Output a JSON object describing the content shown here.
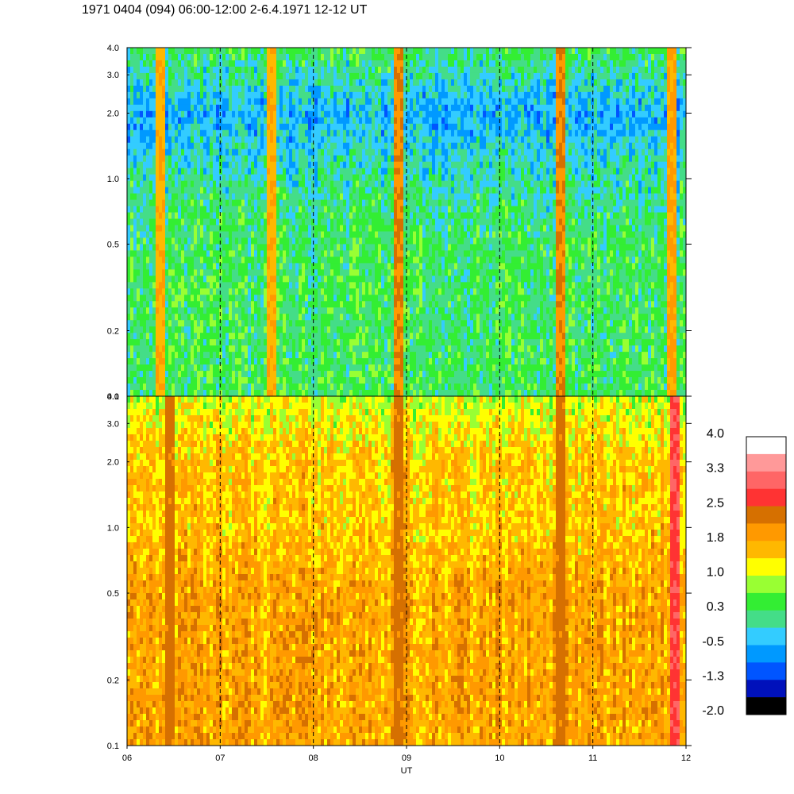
{
  "title": "1971 0404 (094) 06:00-12:00 2-6.4.1971 12-12 UT",
  "chart_data": {
    "type": "heatmap",
    "title": "1971 0404 (094) 06:00-12:00 2-6.4.1971 12-12 UT",
    "xlabel": "UT",
    "x_ticks": [
      "06",
      "07",
      "08",
      "09",
      "10",
      "11",
      "12"
    ],
    "x_range": [
      6,
      12
    ],
    "y_scale": "log",
    "y_range": [
      0.1,
      4.0
    ],
    "y_ticks": [
      "4.0",
      "3.0",
      "2.0",
      "1.0",
      "0.5",
      "0.2",
      "0.1"
    ],
    "y_tick_values": [
      4.0,
      3.0,
      2.0,
      1.0,
      0.5,
      0.2,
      0.1
    ],
    "hour_markers": [
      7,
      8,
      9,
      10,
      11
    ],
    "panels": [
      {
        "name": "upper",
        "typical_value_by_frequency": [
          {
            "f": 0.1,
            "value": 0.3
          },
          {
            "f": 0.5,
            "value": 0.3
          },
          {
            "f": 1.0,
            "value": 0.0
          },
          {
            "f": 2.0,
            "value": -0.5
          },
          {
            "f": 4.0,
            "value": 0.3
          }
        ],
        "hot_intervals": [
          {
            "t": 6.35,
            "value": 1.9
          },
          {
            "t": 7.55,
            "value": 1.9
          },
          {
            "t": 8.9,
            "value": 2.3
          },
          {
            "t": 10.65,
            "value": 2.3
          },
          {
            "t": 11.85,
            "value": 2.0
          }
        ]
      },
      {
        "name": "lower",
        "typical_value_by_frequency": [
          {
            "f": 0.1,
            "value": 1.8
          },
          {
            "f": 0.5,
            "value": 1.8
          },
          {
            "f": 1.0,
            "value": 1.5
          },
          {
            "f": 2.0,
            "value": 1.5
          },
          {
            "f": 3.0,
            "value": 1.2
          },
          {
            "f": 4.0,
            "value": 1.0
          }
        ],
        "hot_intervals": [
          {
            "t": 6.45,
            "value": 2.5
          },
          {
            "t": 8.9,
            "value": 2.5
          },
          {
            "t": 10.65,
            "value": 2.5
          },
          {
            "t": 11.88,
            "value": 3.0
          }
        ]
      }
    ],
    "colorbar": {
      "labels": [
        "4.0",
        "3.3",
        "2.5",
        "1.8",
        "1.0",
        "0.3",
        "-0.5",
        "-1.3",
        "-2.0"
      ],
      "colors": [
        "#ffffff",
        "#ff9999",
        "#ff6666",
        "#ff3333",
        "#d67000",
        "#ff9900",
        "#ffb800",
        "#ffff00",
        "#99ff33",
        "#33ee33",
        "#44dd88",
        "#33ccff",
        "#0099ff",
        "#0055ff",
        "#0011bb",
        "#000000"
      ]
    }
  }
}
